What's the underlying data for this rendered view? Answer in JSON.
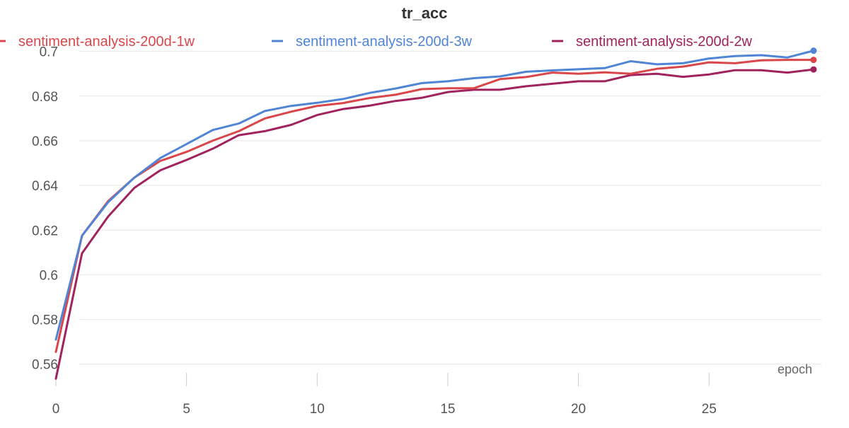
{
  "chart_data": {
    "type": "line",
    "title": "tr_acc",
    "xlabel": "epoch",
    "ylabel": "",
    "xlim": [
      0,
      29.3
    ],
    "ylim": [
      0.552,
      0.704
    ],
    "xticks": [
      0,
      5,
      10,
      15,
      20,
      25
    ],
    "yticks": [
      0.56,
      0.58,
      0.6,
      0.62,
      0.64,
      0.66,
      0.68,
      0.7
    ],
    "grid": true,
    "legend_position": "top",
    "x": [
      0,
      1,
      2,
      3,
      4,
      5,
      6,
      7,
      8,
      9,
      10,
      11,
      12,
      13,
      14,
      15,
      16,
      17,
      18,
      19,
      20,
      21,
      22,
      23,
      24,
      25,
      26,
      27,
      28,
      29
    ],
    "series": [
      {
        "name": "sentiment-analysis-200d-1w",
        "color": "#d9474b",
        "values": [
          0.5655,
          0.6175,
          0.633,
          0.6435,
          0.651,
          0.655,
          0.66,
          0.6643,
          0.67,
          0.673,
          0.6756,
          0.6769,
          0.6791,
          0.6806,
          0.6831,
          0.6835,
          0.6835,
          0.6876,
          0.6885,
          0.6905,
          0.69,
          0.6906,
          0.69,
          0.6922,
          0.6932,
          0.6951,
          0.6947,
          0.696,
          0.6962,
          0.6962
        ]
      },
      {
        "name": "sentiment-analysis-200d-3w",
        "color": "#5085d6",
        "values": [
          0.571,
          0.6175,
          0.6325,
          0.6435,
          0.6523,
          0.6585,
          0.6648,
          0.6677,
          0.6733,
          0.6756,
          0.677,
          0.6787,
          0.6814,
          0.6834,
          0.6858,
          0.6866,
          0.688,
          0.6888,
          0.6909,
          0.6915,
          0.692,
          0.6925,
          0.6956,
          0.6942,
          0.6947,
          0.6968,
          0.6979,
          0.6983,
          0.6973,
          0.7003
        ]
      },
      {
        "name": "sentiment-analysis-200d-2w",
        "color": "#a0235e",
        "values": [
          0.5535,
          0.6096,
          0.6261,
          0.6389,
          0.6468,
          0.6514,
          0.6564,
          0.6625,
          0.6643,
          0.6671,
          0.6715,
          0.6742,
          0.6757,
          0.6778,
          0.6792,
          0.6818,
          0.6828,
          0.6828,
          0.6844,
          0.6855,
          0.6866,
          0.6866,
          0.6894,
          0.69,
          0.6886,
          0.6897,
          0.6916,
          0.6916,
          0.6905,
          0.6919
        ]
      }
    ]
  }
}
